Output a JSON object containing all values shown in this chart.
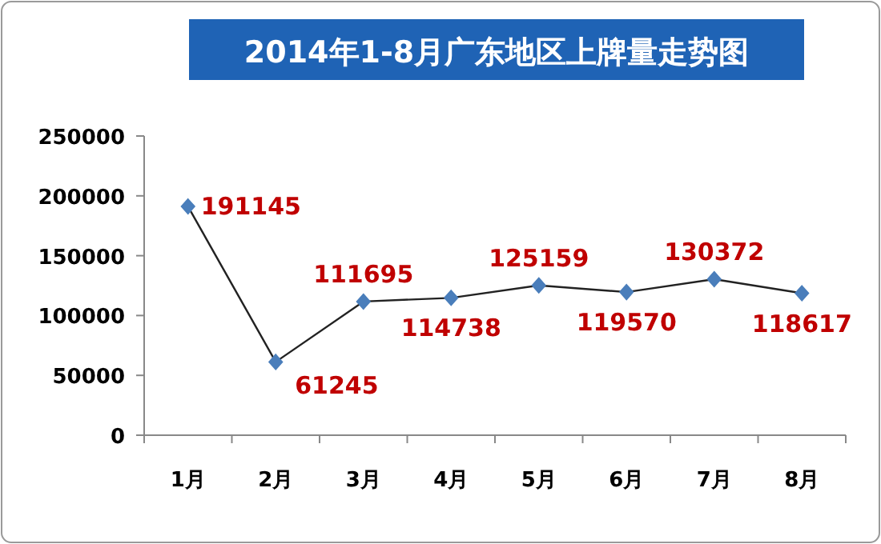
{
  "chart_data": {
    "type": "line",
    "title": "2014年1-8月广东地区上牌量走势图",
    "categories": [
      "1月",
      "2月",
      "3月",
      "4月",
      "5月",
      "6月",
      "7月",
      "8月"
    ],
    "values": [
      191145,
      61245,
      111695,
      114738,
      125159,
      119570,
      130372,
      118617
    ],
    "color": "#4a7ebb",
    "marker": "diamond",
    "data_labels": true,
    "ylim": [
      0,
      250000
    ],
    "yticks": [
      0,
      50000,
      100000,
      150000,
      200000,
      250000
    ]
  }
}
